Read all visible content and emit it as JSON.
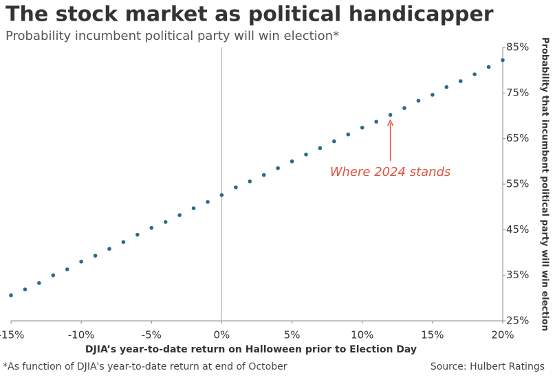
{
  "chart_data": {
    "type": "scatter",
    "title": "The stock market as political handicapper",
    "subtitle": "Probability incumbent political party will win election*",
    "x_label": "DJIA’s year-to-date return on Halloween prior to Election Day",
    "y_label": "Probability that incumbent political party will win election",
    "footnote": "*As function of DJIA's year-to-date return at end of October",
    "source": "Source: Hulbert Ratings",
    "annotation": {
      "text": "Where 2024 stands",
      "x": 12,
      "color": "#e0533e"
    },
    "color": "#2a6a86",
    "x": [
      -15,
      -14,
      -13,
      -12,
      -11,
      -10,
      -9,
      -8,
      -7,
      -6,
      -5,
      -4,
      -3,
      -2,
      -1,
      0,
      1,
      2,
      3,
      4,
      5,
      6,
      7,
      8,
      9,
      10,
      11,
      12,
      13,
      14,
      15,
      16,
      17,
      18,
      19,
      20
    ],
    "values": [
      30.6,
      31.9,
      33.3,
      35.0,
      36.3,
      38.0,
      39.3,
      40.8,
      42.3,
      43.9,
      45.4,
      46.7,
      48.2,
      49.7,
      51.1,
      52.6,
      54.3,
      55.6,
      57.0,
      58.5,
      60.0,
      61.5,
      62.9,
      64.4,
      65.9,
      67.4,
      68.7,
      70.2,
      71.7,
      73.3,
      74.6,
      76.3,
      77.6,
      79.1,
      80.7,
      82.2
    ],
    "xlim": [
      -15,
      20
    ],
    "ylim": [
      25,
      85
    ],
    "xticks": [
      {
        "value": -15,
        "label": "-15%"
      },
      {
        "value": -10,
        "label": "-10%"
      },
      {
        "value": -5,
        "label": "-5%"
      },
      {
        "value": 0,
        "label": "0%"
      },
      {
        "value": 5,
        "label": "5%"
      },
      {
        "value": 10,
        "label": "10%"
      },
      {
        "value": 15,
        "label": "15%"
      },
      {
        "value": 20,
        "label": "20%"
      }
    ],
    "yticks": [
      {
        "value": 25,
        "label": "25%"
      },
      {
        "value": 35,
        "label": "35%"
      },
      {
        "value": 45,
        "label": "45%"
      },
      {
        "value": 55,
        "label": "55%"
      },
      {
        "value": 65,
        "label": "65%"
      },
      {
        "value": 75,
        "label": "75%"
      },
      {
        "value": 85,
        "label": "85%"
      }
    ]
  }
}
